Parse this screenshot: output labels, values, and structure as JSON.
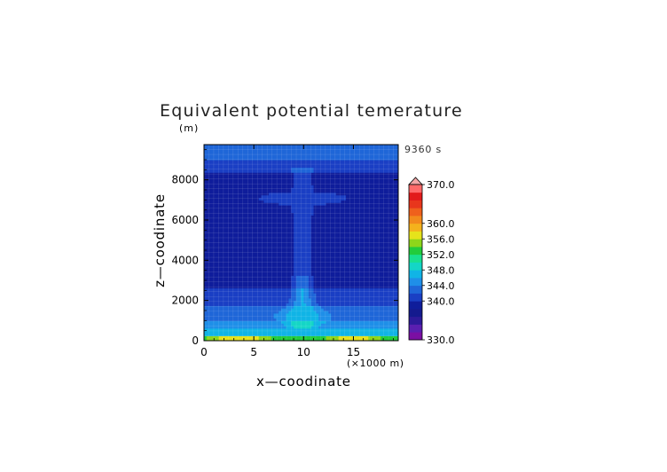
{
  "chart_data": {
    "type": "heatmap",
    "title": "Equivalent potential temerature",
    "y_unit_label": "(m)",
    "time_label": "9360  s",
    "xlabel": "x—coodinate",
    "x_unit_label": "(×1000 m)",
    "ylabel": "z—coodinate",
    "xlim": [
      0,
      19.5
    ],
    "ylim": [
      0,
      9750
    ],
    "x_ticks": [
      0,
      5,
      10,
      15
    ],
    "y_ticks": [
      0,
      2000,
      4000,
      6000,
      8000
    ],
    "grid": true,
    "colorbar": {
      "levels": [
        330,
        332,
        334,
        336,
        338,
        340,
        342,
        344,
        346,
        348,
        350,
        352,
        354,
        356,
        358,
        360,
        362,
        364,
        366,
        368,
        370
      ],
      "colors": [
        "#7b0fa3",
        "#5a1fb0",
        "#2d1a9a",
        "#141a8e",
        "#0f1d9b",
        "#1a3fc4",
        "#1f66d8",
        "#1f8fe8",
        "#10b4e6",
        "#14d6c6",
        "#19e08f",
        "#22cc3c",
        "#8ed61a",
        "#e6e31b",
        "#f4b21c",
        "#f28a1c",
        "#ef601c",
        "#e8361c",
        "#e21b1b",
        "#ff6a6a"
      ],
      "tick_labels": [
        "330.0",
        "340.0",
        "344.0",
        "348.0",
        "352.0",
        "356.0",
        "360.0",
        "370.0"
      ],
      "tick_values": [
        330,
        340,
        344,
        348,
        352,
        356,
        360,
        370
      ]
    },
    "field_description_values": {
      "lower_boundary_max": 358,
      "background_mid": 339,
      "upper_layer": 342,
      "plume_core": 344
    }
  }
}
